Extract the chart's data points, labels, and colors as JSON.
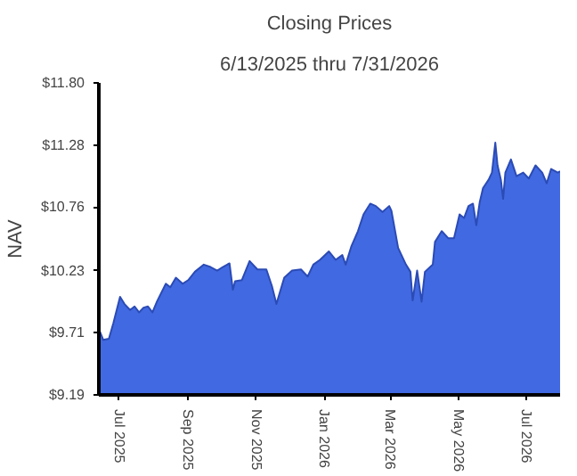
{
  "chart_data": {
    "type": "area",
    "title": "Closing Prices",
    "subtitle": "6/13/2025 thru 7/31/2026",
    "ylabel": "NAV",
    "x": [
      "2025-06-13",
      "2025-06-17",
      "2025-06-22",
      "2025-06-26",
      "2025-07-02",
      "2025-07-06",
      "2025-07-11",
      "2025-07-15",
      "2025-07-19",
      "2025-07-23",
      "2025-07-27",
      "2025-07-31",
      "2025-08-04",
      "2025-08-12",
      "2025-08-16",
      "2025-08-21",
      "2025-08-27",
      "2025-09-01",
      "2025-09-07",
      "2025-09-15",
      "2025-09-21",
      "2025-09-27",
      "2025-10-02",
      "2025-10-08",
      "2025-10-11",
      "2025-10-13",
      "2025-10-19",
      "2025-10-26",
      "2025-11-02",
      "2025-11-10",
      "2025-11-15",
      "2025-11-19",
      "2025-11-26",
      "2025-12-03",
      "2025-12-11",
      "2025-12-17",
      "2025-12-22",
      "2025-12-28",
      "2026-01-05",
      "2026-01-11",
      "2026-01-17",
      "2026-01-20",
      "2026-01-25",
      "2026-01-31",
      "2026-02-05",
      "2026-02-11",
      "2026-02-16",
      "2026-02-22",
      "2026-02-28",
      "2026-03-02",
      "2026-03-08",
      "2026-03-15",
      "2026-03-19",
      "2026-03-21",
      "2026-03-25",
      "2026-03-29",
      "2026-04-01",
      "2026-04-08",
      "2026-04-10",
      "2026-04-16",
      "2026-04-22",
      "2026-04-27",
      "2026-05-02",
      "2026-05-06",
      "2026-05-10",
      "2026-05-14",
      "2026-05-17",
      "2026-05-20",
      "2026-05-23",
      "2026-05-28",
      "2026-05-31",
      "2026-06-03",
      "2026-06-05",
      "2026-06-08",
      "2026-06-10",
      "2026-06-12",
      "2026-06-17",
      "2026-06-22",
      "2026-06-28",
      "2026-07-03",
      "2026-07-09",
      "2026-07-15",
      "2026-07-19",
      "2026-07-23",
      "2026-07-29",
      "2026-07-31"
    ],
    "series": [
      {
        "color": "#4169e1",
        "values": [
          9.74,
          9.65,
          9.66,
          9.79,
          10.01,
          9.95,
          9.9,
          9.93,
          9.88,
          9.92,
          9.93,
          9.88,
          9.97,
          10.12,
          10.09,
          10.17,
          10.12,
          10.15,
          10.22,
          10.28,
          10.26,
          10.23,
          10.26,
          10.29,
          10.07,
          10.14,
          10.15,
          10.31,
          10.24,
          10.24,
          10.1,
          9.95,
          10.17,
          10.23,
          10.24,
          10.18,
          10.28,
          10.32,
          10.39,
          10.32,
          10.36,
          10.28,
          10.43,
          10.56,
          10.7,
          10.79,
          10.77,
          10.72,
          10.77,
          10.73,
          10.42,
          10.28,
          10.22,
          9.98,
          10.23,
          9.97,
          10.22,
          10.28,
          10.47,
          10.56,
          10.5,
          10.5,
          10.7,
          10.67,
          10.77,
          10.79,
          10.61,
          10.8,
          10.92,
          10.99,
          11.05,
          11.3,
          11.11,
          10.99,
          10.83,
          11.05,
          11.16,
          11.02,
          11.05,
          11.0,
          11.11,
          11.05,
          10.96,
          11.08,
          11.05,
          11.06
        ]
      }
    ],
    "xlim": [
      "2025-06-13",
      "2026-07-31"
    ],
    "xticks": [
      {
        "value": "2025-07-01",
        "label": "Jul 2025"
      },
      {
        "value": "2025-09-01",
        "label": "Sep 2025"
      },
      {
        "value": "2025-11-01",
        "label": "Nov 2025"
      },
      {
        "value": "2026-01-01",
        "label": "Jan 2026"
      },
      {
        "value": "2026-03-01",
        "label": "Mar 2026"
      },
      {
        "value": "2026-05-01",
        "label": "May 2026"
      },
      {
        "value": "2026-07-01",
        "label": "Jul 2026"
      }
    ],
    "ylim": [
      9.19,
      11.8
    ],
    "yticks": [
      {
        "value": 9.19,
        "label": "$9.19"
      },
      {
        "value": 9.71,
        "label": "$9.71"
      },
      {
        "value": 10.23,
        "label": "$10.23"
      },
      {
        "value": 10.76,
        "label": "$10.76"
      },
      {
        "value": 11.28,
        "label": "$11.28"
      },
      {
        "value": 11.8,
        "label": "$11.80"
      }
    ],
    "grid": false
  }
}
